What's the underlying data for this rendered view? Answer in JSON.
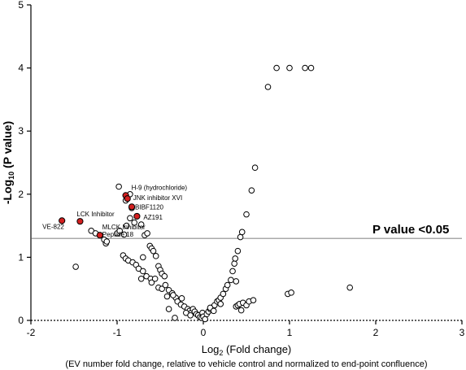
{
  "chart_data": {
    "type": "scatter",
    "xlabel": "Log",
    "xlabel_sub": "2",
    "xlabel_tail": " (Fold change)",
    "ylabel_pre": "-Log",
    "ylabel_sub": "10",
    "ylabel_tail": " (P value)",
    "caption": "(EV number fold change, relative to vehicle control and normalized to end-point confluence)",
    "xlim": [
      -2,
      3
    ],
    "ylim": [
      0,
      5
    ],
    "xticks": [
      "-2",
      "-1",
      "0",
      "1",
      "2",
      "3"
    ],
    "yticks": [
      "0",
      "1",
      "2",
      "3",
      "4",
      "5"
    ],
    "threshold": {
      "y": 1.3,
      "label": "P value <0.05"
    },
    "highlight_color": "#d32020",
    "points": [
      [
        -1.48,
        0.85
      ],
      [
        -1.3,
        1.42
      ],
      [
        -1.25,
        1.38
      ],
      [
        -1.2,
        1.35
      ],
      [
        -1.15,
        1.28
      ],
      [
        -1.13,
        1.22
      ],
      [
        -1.12,
        1.25
      ],
      [
        -1.0,
        1.38
      ],
      [
        -0.97,
        1.42
      ],
      [
        -0.92,
        1.36
      ],
      [
        -0.89,
        1.5
      ],
      [
        -0.85,
        1.62
      ],
      [
        -0.8,
        1.55
      ],
      [
        -0.72,
        1.52
      ],
      [
        -0.68,
        1.35
      ],
      [
        -0.65,
        1.38
      ],
      [
        -0.83,
        1.78
      ],
      [
        -0.9,
        1.9
      ],
      [
        -0.85,
        2.0
      ],
      [
        -0.98,
        2.12
      ],
      [
        -0.93,
        1.03
      ],
      [
        -0.9,
        0.98
      ],
      [
        -0.87,
        0.95
      ],
      [
        -0.82,
        0.92
      ],
      [
        -0.78,
        0.88
      ],
      [
        -0.75,
        0.82
      ],
      [
        -0.7,
        1.0
      ],
      [
        -0.62,
        1.18
      ],
      [
        -0.6,
        1.14
      ],
      [
        -0.58,
        1.1
      ],
      [
        -0.55,
        1.02
      ],
      [
        -0.52,
        0.86
      ],
      [
        -0.5,
        0.8
      ],
      [
        -0.48,
        0.74
      ],
      [
        -0.45,
        0.7
      ],
      [
        -0.7,
        0.78
      ],
      [
        -0.66,
        0.7
      ],
      [
        -0.61,
        0.66
      ],
      [
        -0.6,
        0.6
      ],
      [
        -0.56,
        0.66
      ],
      [
        -0.52,
        0.52
      ],
      [
        -0.48,
        0.5
      ],
      [
        -0.44,
        0.56
      ],
      [
        -0.4,
        0.48
      ],
      [
        -0.36,
        0.43
      ],
      [
        -0.32,
        0.36
      ],
      [
        -0.3,
        0.3
      ],
      [
        -0.26,
        0.25
      ],
      [
        -0.25,
        0.35
      ],
      [
        -0.22,
        0.22
      ],
      [
        -0.18,
        0.18
      ],
      [
        -0.16,
        0.15
      ],
      [
        -0.14,
        0.12
      ],
      [
        -0.12,
        0.18
      ],
      [
        -0.1,
        0.14
      ],
      [
        -0.08,
        0.1
      ],
      [
        -0.06,
        0.08
      ],
      [
        -0.04,
        0.05
      ],
      [
        -0.02,
        0.04
      ],
      [
        -0.01,
        0.12
      ],
      [
        0.0,
        0.06
      ],
      [
        0.02,
        0.02
      ],
      [
        0.04,
        0.1
      ],
      [
        0.06,
        0.14
      ],
      [
        0.08,
        0.18
      ],
      [
        0.1,
        0.2
      ],
      [
        0.13,
        0.24
      ],
      [
        0.16,
        0.3
      ],
      [
        0.18,
        0.32
      ],
      [
        0.2,
        0.36
      ],
      [
        0.23,
        0.42
      ],
      [
        0.26,
        0.5
      ],
      [
        0.28,
        0.56
      ],
      [
        0.32,
        0.64
      ],
      [
        0.34,
        0.78
      ],
      [
        0.36,
        0.9
      ],
      [
        0.37,
        0.98
      ],
      [
        0.38,
        0.62
      ],
      [
        0.4,
        1.1
      ],
      [
        0.43,
        1.32
      ],
      [
        0.45,
        1.4
      ],
      [
        0.5,
        1.68
      ],
      [
        0.56,
        2.06
      ],
      [
        0.6,
        2.42
      ],
      [
        0.75,
        3.7
      ],
      [
        0.85,
        4.0
      ],
      [
        1.0,
        4.0
      ],
      [
        1.18,
        4.0
      ],
      [
        1.25,
        4.0
      ],
      [
        0.38,
        0.22
      ],
      [
        0.4,
        0.24
      ],
      [
        0.42,
        0.26
      ],
      [
        0.44,
        0.16
      ],
      [
        0.46,
        0.28
      ],
      [
        0.5,
        0.24
      ],
      [
        0.53,
        0.3
      ],
      [
        0.58,
        0.32
      ],
      [
        0.98,
        0.42
      ],
      [
        1.02,
        0.44
      ],
      [
        1.7,
        0.52
      ],
      [
        -0.72,
        0.66
      ],
      [
        -0.4,
        0.18
      ],
      [
        -0.33,
        0.04
      ],
      [
        -0.2,
        0.12
      ],
      [
        -0.15,
        0.08
      ],
      [
        0.08,
        0.2
      ],
      [
        0.12,
        0.15
      ],
      [
        0.2,
        0.26
      ],
      [
        -0.42,
        0.38
      ],
      [
        -0.35,
        0.4
      ]
    ],
    "highlighted": [
      {
        "x": -1.64,
        "y": 1.58,
        "label": "VE-822"
      },
      {
        "x": -1.43,
        "y": 1.57,
        "label": "LCK Inhibitor"
      },
      {
        "x": -1.2,
        "y": 1.35,
        "label": "MLCK Inhibitor"
      },
      {
        "x": -0.9,
        "y": 1.98,
        "label": "H-9 (hydrochloride)"
      },
      {
        "x": -0.88,
        "y": 1.93,
        "label": "JNK inhibitor XVI"
      },
      {
        "x": -0.83,
        "y": 1.8,
        "label": "BIBF1120"
      },
      {
        "x": -0.77,
        "y": 1.65,
        "label": "AZ191"
      }
    ],
    "extra_annotation": "Peptide 18"
  }
}
